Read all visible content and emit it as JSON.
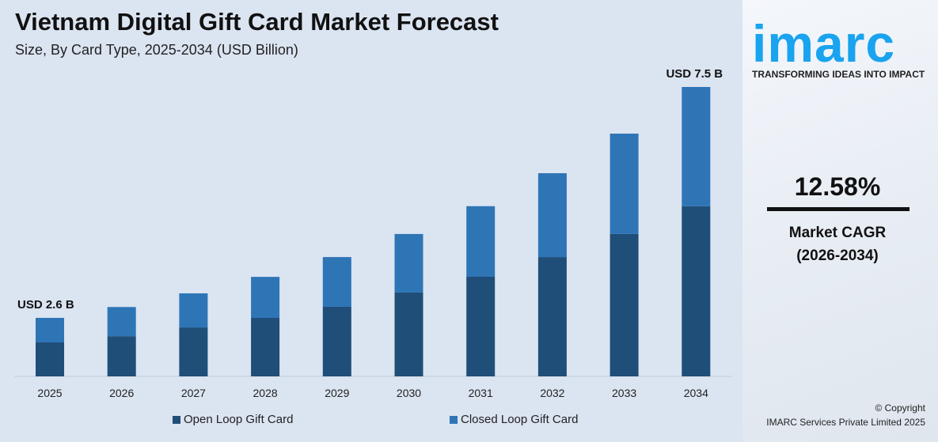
{
  "header": {
    "title": "Vietnam Digital Gift Card Market Forecast",
    "subtitle": "Size, By Card Type, 2025-2034 (USD Billion)"
  },
  "chart_data": {
    "type": "bar",
    "stacked": true,
    "title": "Vietnam Digital Gift Card Market Forecast",
    "subtitle": "Size, By Card Type, 2025-2034 (USD Billion)",
    "categories": [
      "2025",
      "2026",
      "2027",
      "2028",
      "2029",
      "2030",
      "2031",
      "2032",
      "2033",
      "2034"
    ],
    "series": [
      {
        "name": "Open Loop Gift Card",
        "color": "#1f4e79",
        "values": [
          1.51,
          1.64,
          1.84,
          2.04,
          2.27,
          2.58,
          2.91,
          3.33,
          3.82,
          4.41
        ]
      },
      {
        "name": "Closed Loop Gift Card",
        "color": "#2e75b6",
        "values": [
          1.09,
          1.19,
          1.28,
          1.43,
          1.62,
          1.8,
          2.06,
          2.34,
          2.69,
          3.09
        ]
      }
    ],
    "annotations": [
      {
        "category": "2025",
        "text": "USD 2.6 B"
      },
      {
        "category": "2034",
        "text": "USD 7.5 B"
      }
    ],
    "legend_position": "bottom",
    "grid": false
  },
  "sidebar": {
    "logo": "imarc",
    "tagline": "TRANSFORMING IDEAS INTO IMPACT",
    "cagr_value": "12.58%",
    "cagr_label": "Market CAGR",
    "cagr_period": "(2026-2034)",
    "copyright": "© Copyright",
    "company": "IMARC Services Private Limited 2025"
  }
}
